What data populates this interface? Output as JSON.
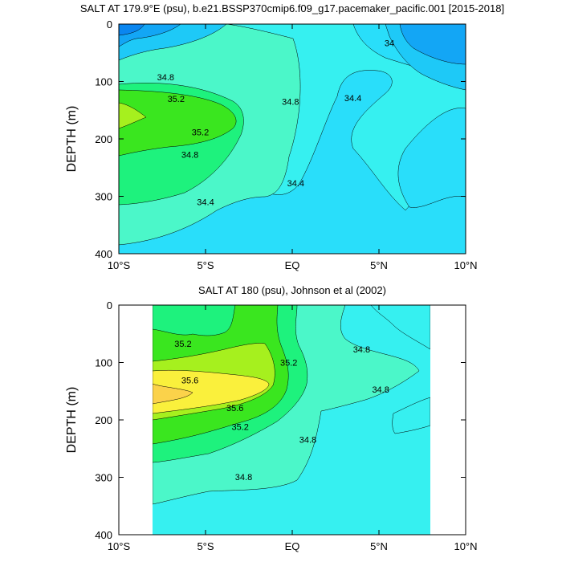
{
  "colors": {
    "c33_8": "#0A86F0",
    "c34_0": "#13A6F5",
    "c34_2": "#1EC9F7",
    "c34_4": "#29DEFA",
    "c34_6": "#36F0F0",
    "c34_8": "#4BF7C9",
    "c35_0": "#1EF27D",
    "c35_2": "#3AE61F",
    "c35_4": "#A6F01E",
    "c35_6": "#FAF03C",
    "c35_8": "#FBD24A",
    "line": "#000000"
  },
  "chart_data": [
    {
      "type": "contour",
      "title": "SALT AT 179.9°E (psu), b.e21.BSSP370cmip6.f09_g17.pacemaker_pacific.001 [2015-2018]",
      "ylabel": "DEPTH (m)",
      "xlabel": "",
      "x_ticks": [
        "10°S",
        "5°S",
        "EQ",
        "5°N",
        "10°N"
      ],
      "x_tick_values": [
        -10,
        -5,
        0,
        5,
        10
      ],
      "y_ticks": [
        "0",
        "100",
        "200",
        "300",
        "400"
      ],
      "y_tick_values": [
        0,
        100,
        200,
        300,
        400
      ],
      "xlim": [
        -10,
        10
      ],
      "ylim": [
        400,
        0
      ],
      "contour_labels": [
        {
          "text": "34.8",
          "lat": -7.3,
          "depth": 92
        },
        {
          "text": "35.2",
          "lat": -6.7,
          "depth": 130
        },
        {
          "text": "35.2",
          "lat": -5.3,
          "depth": 188
        },
        {
          "text": "34.8",
          "lat": -5.9,
          "depth": 227
        },
        {
          "text": "34.4",
          "lat": -5.0,
          "depth": 310
        },
        {
          "text": "34.8",
          "lat": -0.1,
          "depth": 135
        },
        {
          "text": "34.4",
          "lat": 0.2,
          "depth": 277
        },
        {
          "text": "34.4",
          "lat": 3.5,
          "depth": 129
        },
        {
          "text": "34",
          "lat": 5.6,
          "depth": 33
        }
      ]
    },
    {
      "type": "contour",
      "title": "SALT AT 180 (psu), Johnson et al (2002)",
      "ylabel": "DEPTH (m)",
      "xlabel": "",
      "x_ticks": [
        "10°S",
        "5°S",
        "EQ",
        "5°N",
        "10°N"
      ],
      "x_tick_values": [
        -10,
        -5,
        0,
        5,
        10
      ],
      "y_ticks": [
        "0",
        "100",
        "200",
        "300",
        "400"
      ],
      "y_tick_values": [
        0,
        100,
        200,
        300,
        400
      ],
      "xlim": [
        -10,
        10
      ],
      "ylim": [
        400,
        0
      ],
      "data_extent_lat": [
        -8,
        8
      ],
      "contour_labels": [
        {
          "text": "35.2",
          "lat": -6.3,
          "depth": 67
        },
        {
          "text": "35.2",
          "lat": -0.2,
          "depth": 100
        },
        {
          "text": "35.6",
          "lat": -5.9,
          "depth": 131
        },
        {
          "text": "35.6",
          "lat": -3.3,
          "depth": 179
        },
        {
          "text": "35.2",
          "lat": -3.0,
          "depth": 212
        },
        {
          "text": "34.8",
          "lat": 0.9,
          "depth": 234
        },
        {
          "text": "34.8",
          "lat": -2.8,
          "depth": 299
        },
        {
          "text": "34.8",
          "lat": 4.0,
          "depth": 77
        },
        {
          "text": "34.8",
          "lat": 5.1,
          "depth": 147
        }
      ]
    }
  ]
}
